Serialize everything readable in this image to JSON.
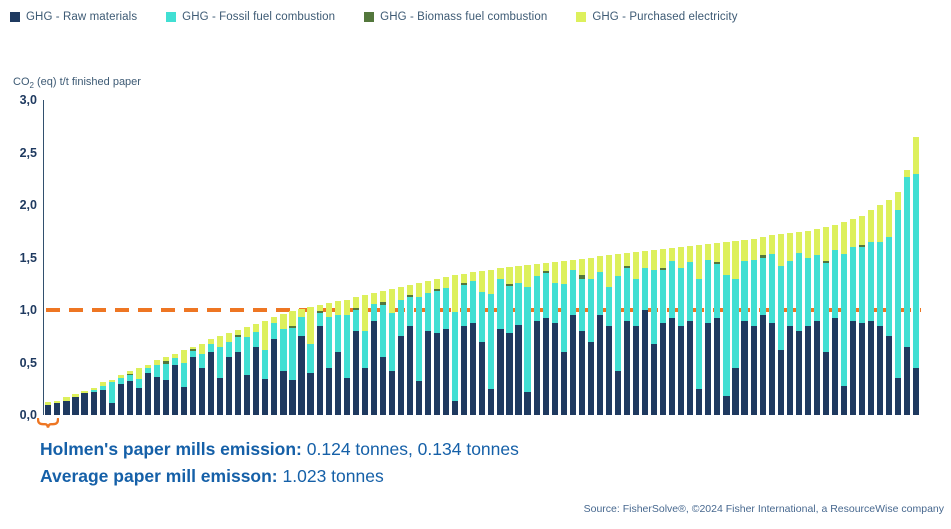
{
  "legend": {
    "items": [
      {
        "label": "GHG - Raw materials",
        "color": "#1F3A60"
      },
      {
        "label": "GHG - Fossil fuel combustion",
        "color": "#41DFD3"
      },
      {
        "label": "GHG - Biomass fuel combustion",
        "color": "#53773C"
      },
      {
        "label": "GHG - Purchased electricity",
        "color": "#DDF05C"
      }
    ]
  },
  "chart_data": {
    "type": "bar",
    "stacked": true,
    "ylabel_prefix": "CO",
    "ylabel_sub": "2",
    "ylabel_suffix": " (eq) t/t finished paper",
    "ylim": [
      0,
      3
    ],
    "yticks": [
      "3,0",
      "2,5",
      "2,0",
      "1,5",
      "1,0",
      "0,5",
      "0,0"
    ],
    "grid": false,
    "legend_position": "top",
    "reference_line": {
      "value": 1.0,
      "color": "#EE7623",
      "style": "dashed"
    },
    "x_description": "Paper mills sorted by total GHG emission per tonne of finished paper (97 mills, unlabeled x-axis)",
    "series": [
      {
        "name": "GHG - Raw materials",
        "color": "#1F3A60",
        "values": [
          0.1,
          0.11,
          0.13,
          0.17,
          0.21,
          0.22,
          0.24,
          0.11,
          0.3,
          0.32,
          0.26,
          0.4,
          0.36,
          0.33,
          0.48,
          0.27,
          0.55,
          0.45,
          0.6,
          0.35,
          0.55,
          0.6,
          0.38,
          0.65,
          0.34,
          0.72,
          0.42,
          0.33,
          0.75,
          0.4,
          0.85,
          0.45,
          0.6,
          0.35,
          0.8,
          0.45,
          0.9,
          0.55,
          0.42,
          0.75,
          0.85,
          0.32,
          0.8,
          0.78,
          0.82,
          0.13,
          0.85,
          0.88,
          0.7,
          0.25,
          0.82,
          0.78,
          0.86,
          0.22,
          0.9,
          0.92,
          0.88,
          0.6,
          0.95,
          0.8,
          0.7,
          0.95,
          0.85,
          0.42,
          0.9,
          0.85,
          1.0,
          0.68,
          0.88,
          0.92,
          0.85,
          0.9,
          0.25,
          0.88,
          0.92,
          0.18,
          0.45,
          0.9,
          0.85,
          0.95,
          0.88,
          0.62,
          0.85,
          0.8,
          0.85,
          0.9,
          0.6,
          0.92,
          0.28,
          0.9,
          0.88,
          0.9,
          0.85,
          0.75,
          0.35,
          0.65,
          0.45
        ]
      },
      {
        "name": "GHG - Fossil fuel combustion",
        "color": "#41DFD3",
        "values": [
          0.0,
          0.0,
          0.0,
          0.0,
          0.0,
          0.02,
          0.04,
          0.2,
          0.05,
          0.06,
          0.08,
          0.05,
          0.12,
          0.16,
          0.06,
          0.23,
          0.06,
          0.13,
          0.08,
          0.3,
          0.15,
          0.14,
          0.36,
          0.14,
          0.28,
          0.16,
          0.4,
          0.5,
          0.18,
          0.28,
          0.12,
          0.48,
          0.35,
          0.6,
          0.2,
          0.35,
          0.16,
          0.5,
          0.55,
          0.35,
          0.27,
          0.8,
          0.36,
          0.4,
          0.39,
          0.85,
          0.39,
          0.4,
          0.47,
          0.9,
          0.48,
          0.45,
          0.4,
          1.0,
          0.42,
          0.43,
          0.38,
          0.65,
          0.43,
          0.5,
          0.6,
          0.41,
          0.37,
          0.9,
          0.5,
          0.45,
          0.4,
          0.7,
          0.5,
          0.55,
          0.55,
          0.56,
          1.05,
          0.6,
          0.52,
          1.15,
          0.85,
          0.57,
          0.63,
          0.55,
          0.65,
          0.8,
          0.62,
          0.74,
          0.65,
          0.62,
          0.85,
          0.65,
          1.25,
          0.7,
          0.72,
          0.75,
          0.8,
          0.95,
          1.6,
          1.62,
          1.85
        ]
      },
      {
        "name": "GHG - Biomass fuel combustion",
        "color": "#53773C",
        "values": [
          0,
          0,
          0,
          0,
          0,
          0,
          0,
          0,
          0,
          0.01,
          0,
          0,
          0,
          0.02,
          0,
          0,
          0.02,
          0,
          0,
          0,
          0,
          0.02,
          0,
          0,
          0,
          0,
          0,
          0.02,
          0,
          0,
          0.02,
          0,
          0,
          0,
          0.02,
          0,
          0,
          0.03,
          0,
          0,
          0.02,
          0,
          0,
          0.02,
          0,
          0,
          0.02,
          0,
          0,
          0,
          0,
          0.02,
          0,
          0,
          0,
          0.02,
          0,
          0,
          0,
          0.03,
          0,
          0,
          0,
          0,
          0.02,
          0,
          0,
          0,
          0.02,
          0,
          0,
          0,
          0,
          0,
          0.02,
          0,
          0,
          0,
          0,
          0.02,
          0,
          0,
          0,
          0,
          0,
          0,
          0.02,
          0,
          0,
          0,
          0.02,
          0,
          0,
          0,
          0,
          0,
          0
        ]
      },
      {
        "name": "GHG - Purchased electricity",
        "color": "#DDF05C",
        "values": [
          0.02,
          0.02,
          0.04,
          0.03,
          0.02,
          0.02,
          0.03,
          0.02,
          0.03,
          0.03,
          0.11,
          0.03,
          0.04,
          0.04,
          0.04,
          0.12,
          0.02,
          0.1,
          0.04,
          0.1,
          0.08,
          0.05,
          0.1,
          0.08,
          0.28,
          0.05,
          0.14,
          0.14,
          0.08,
          0.35,
          0.06,
          0.14,
          0.14,
          0.15,
          0.1,
          0.34,
          0.1,
          0.1,
          0.23,
          0.12,
          0.1,
          0.14,
          0.12,
          0.1,
          0.1,
          0.35,
          0.08,
          0.08,
          0.2,
          0.23,
          0.1,
          0.16,
          0.16,
          0.21,
          0.12,
          0.08,
          0.2,
          0.22,
          0.1,
          0.16,
          0.2,
          0.15,
          0.3,
          0.21,
          0.12,
          0.25,
          0.16,
          0.19,
          0.18,
          0.12,
          0.2,
          0.15,
          0.32,
          0.15,
          0.18,
          0.32,
          0.36,
          0.2,
          0.2,
          0.18,
          0.18,
          0.3,
          0.26,
          0.2,
          0.25,
          0.25,
          0.32,
          0.24,
          0.31,
          0.27,
          0.28,
          0.3,
          0.35,
          0.35,
          0.17,
          0.06,
          0.35
        ]
      }
    ]
  },
  "annotations": {
    "holmen_label": "Holmen's paper mills emission:",
    "holmen_value": " 0.124 tonnes, 0.134 tonnes",
    "average_label": "Average paper mill emisson:",
    "average_value": " 1.023 tonnes",
    "brace_color": "#EE7623"
  },
  "source": "Source: FisherSolve®, ©2024 Fisher International, a ResourceWise company"
}
